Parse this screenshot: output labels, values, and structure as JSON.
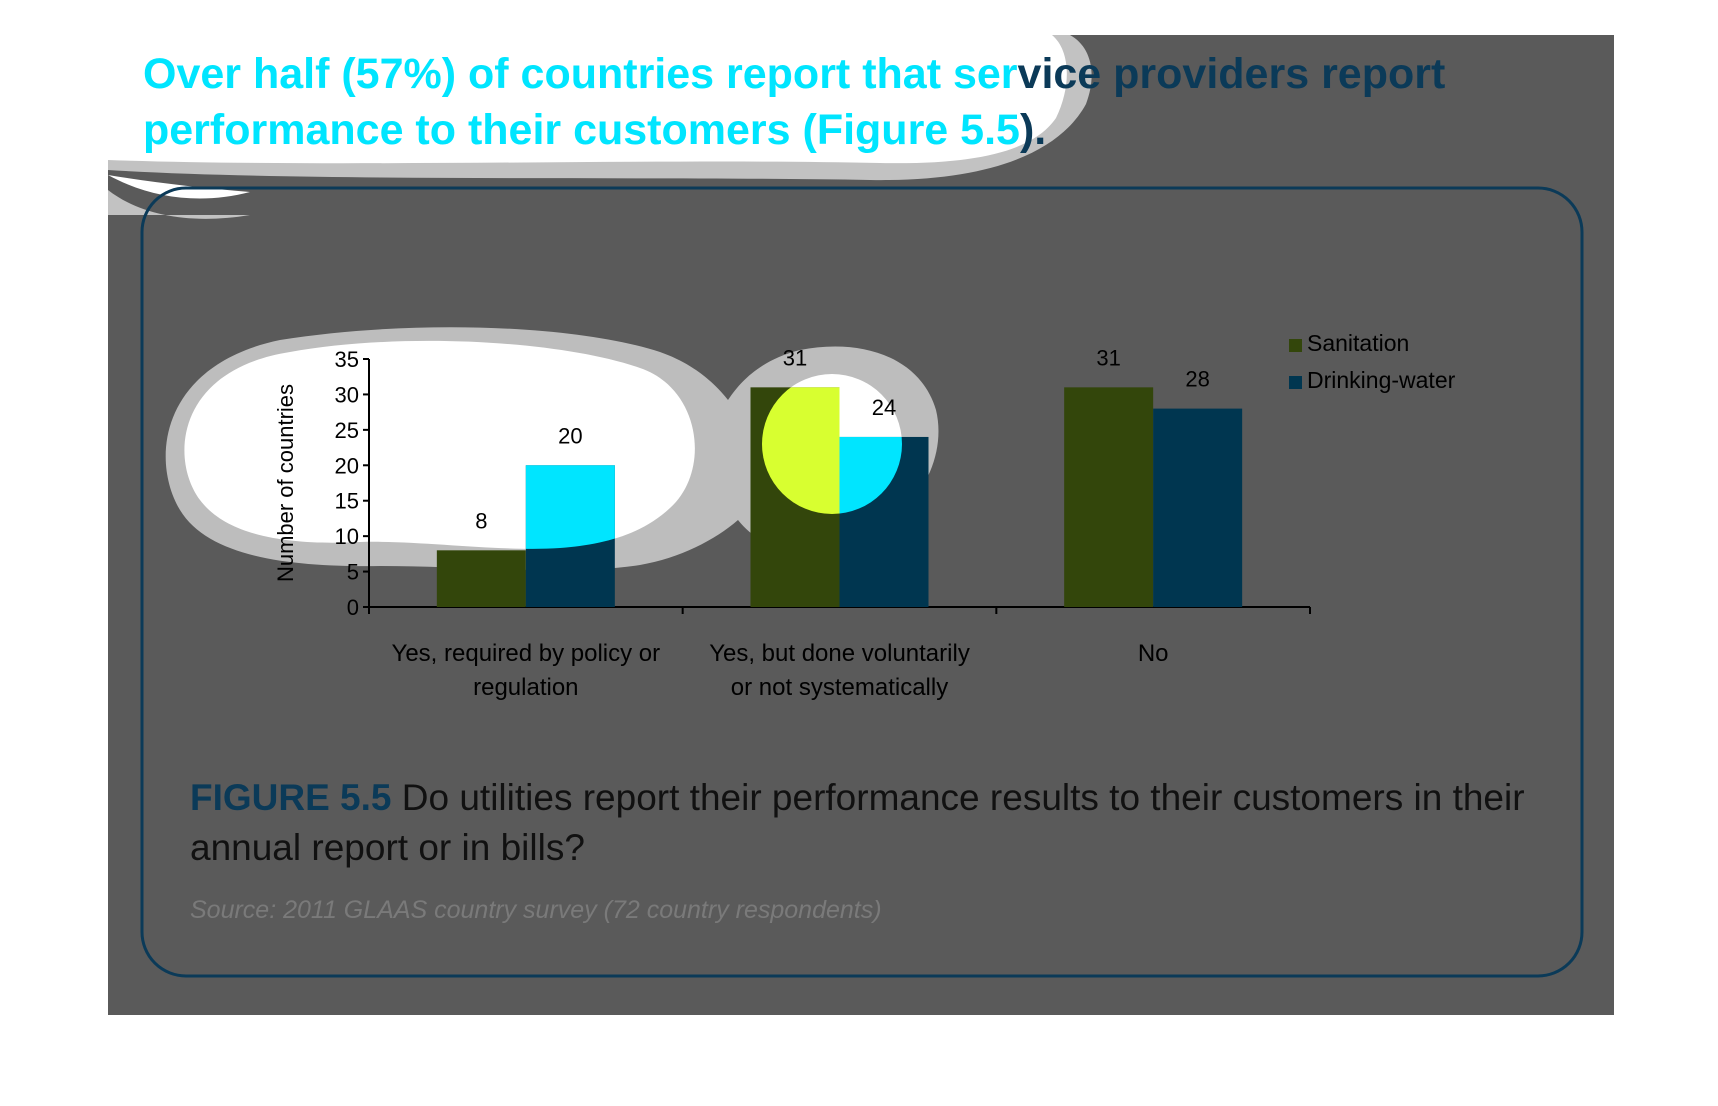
{
  "headline": {
    "part1": "Over half (57%) of countries report that ser",
    "part2": "vice providers report",
    "line2a": "performance to their customers (Figure 5.",
    "line2b": "5",
    "line2c": ")."
  },
  "caption": {
    "figure_label": "FIGURE 5.5",
    "text": " Do utilities report their performance results to their customers in their annual report or in bills?"
  },
  "source": "Source: 2011 GLAAS country survey (72 country respondents)",
  "colors": {
    "sanitation": "#33460b",
    "drinking_water": "#003650",
    "highlight_cyan": "#00e5ff",
    "highlight_yellow": "#d8ff30",
    "panel": "#5a5a5a"
  },
  "chart_data": {
    "type": "bar",
    "ylabel": "Number of countries",
    "xlabel": "",
    "ylim": [
      0,
      35
    ],
    "yticks": [
      "0",
      "5",
      "10",
      "15",
      "20",
      "25",
      "30",
      "35"
    ],
    "categories": [
      [
        "Yes, required by policy or",
        "regulation"
      ],
      [
        "Yes, but done voluntarily",
        "or not systematically"
      ],
      [
        "No"
      ]
    ],
    "series": [
      {
        "name": "Sanitation",
        "values": [
          8,
          31,
          31
        ]
      },
      {
        "name": "Drinking-water",
        "values": [
          20,
          24,
          28
        ]
      }
    ],
    "legend": "right"
  }
}
